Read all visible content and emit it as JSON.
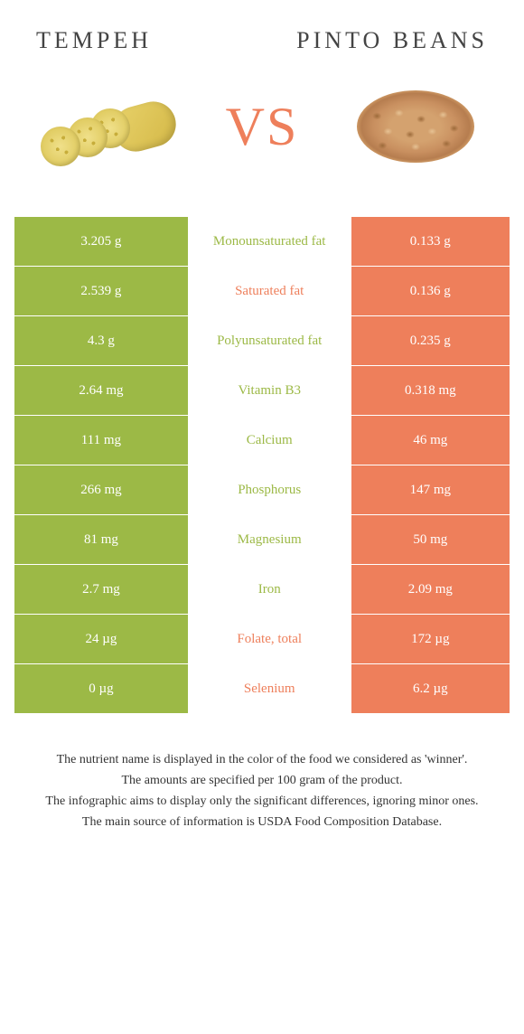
{
  "colors": {
    "left_bg": "#9cb946",
    "right_bg": "#ee7f5b",
    "left_text": "#9cb946",
    "right_text": "#ee7f5b",
    "white": "#ffffff"
  },
  "header": {
    "left_title": "Tempeh",
    "right_title": "Pinto beans",
    "vs_v": "v",
    "vs_s": "s"
  },
  "rows": [
    {
      "left": "3.205 g",
      "label": "Monounsaturated fat",
      "right": "0.133 g",
      "winner": "left"
    },
    {
      "left": "2.539 g",
      "label": "Saturated fat",
      "right": "0.136 g",
      "winner": "right"
    },
    {
      "left": "4.3 g",
      "label": "Polyunsaturated fat",
      "right": "0.235 g",
      "winner": "left"
    },
    {
      "left": "2.64 mg",
      "label": "Vitamin B3",
      "right": "0.318 mg",
      "winner": "left"
    },
    {
      "left": "111 mg",
      "label": "Calcium",
      "right": "46 mg",
      "winner": "left"
    },
    {
      "left": "266 mg",
      "label": "Phosphorus",
      "right": "147 mg",
      "winner": "left"
    },
    {
      "left": "81 mg",
      "label": "Magnesium",
      "right": "50 mg",
      "winner": "left"
    },
    {
      "left": "2.7 mg",
      "label": "Iron",
      "right": "2.09 mg",
      "winner": "left"
    },
    {
      "left": "24 µg",
      "label": "Folate, total",
      "right": "172 µg",
      "winner": "right"
    },
    {
      "left": "0 µg",
      "label": "Selenium",
      "right": "6.2 µg",
      "winner": "right"
    }
  ],
  "footer": {
    "line1": "The nutrient name is displayed in the color of the food we considered as 'winner'.",
    "line2": "The amounts are specified per 100 gram of the product.",
    "line3": "The infographic aims to display only the significant differences, ignoring minor ones.",
    "line4": "The main source of information is USDA Food Composition Database."
  }
}
